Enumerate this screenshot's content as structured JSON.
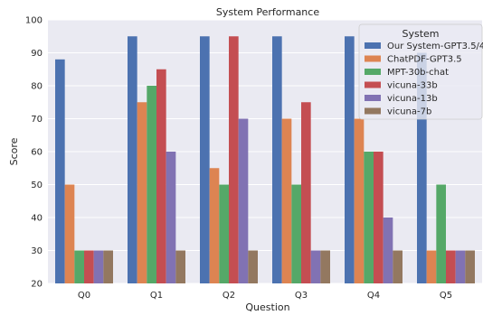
{
  "chart_data": {
    "type": "bar",
    "title": "System Performance",
    "xlabel": "Question",
    "ylabel": "Score",
    "ylim": [
      20,
      100
    ],
    "yticks": [
      20,
      30,
      40,
      50,
      60,
      70,
      80,
      90,
      100
    ],
    "categories": [
      "Q0",
      "Q1",
      "Q2",
      "Q3",
      "Q4",
      "Q5"
    ],
    "legend": {
      "title": "System",
      "placement": "top-right"
    },
    "grid": true,
    "series": [
      {
        "name": "Our System-GPT3.5/4",
        "color": "#4c72b0",
        "values": [
          88,
          95,
          95,
          95,
          95,
          90
        ]
      },
      {
        "name": "ChatPDF-GPT3.5",
        "color": "#dd8452",
        "values": [
          50,
          75,
          55,
          70,
          70,
          30
        ]
      },
      {
        "name": "MPT-30b-chat",
        "color": "#55a868",
        "values": [
          30,
          80,
          50,
          50,
          60,
          50
        ]
      },
      {
        "name": "vicuna-33b",
        "color": "#c44e52",
        "values": [
          30,
          85,
          95,
          75,
          60,
          30
        ]
      },
      {
        "name": "vicuna-13b",
        "color": "#8172b3",
        "values": [
          30,
          60,
          70,
          30,
          40,
          30
        ]
      },
      {
        "name": "vicuna-7b",
        "color": "#937860",
        "values": [
          30,
          30,
          30,
          30,
          30,
          30
        ]
      }
    ]
  }
}
